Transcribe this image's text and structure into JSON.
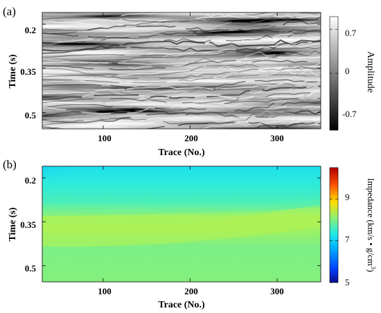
{
  "panels": [
    {
      "panel_label": "(a)",
      "colorbar_label": "Amplitude",
      "colorbar_ticks": [
        "0.7",
        "0",
        "-0.7"
      ],
      "colormap": [
        "#000000",
        "#ffffff"
      ],
      "xlabel": "Trace (No.)",
      "ylabel": "Time (s)",
      "xticks": [
        "100",
        "200",
        "300"
      ],
      "yticks": [
        "0.2",
        "0.35",
        "0.5"
      ]
    },
    {
      "panel_label": "(b)",
      "colorbar_label": "Impedance (km/s • g/cm",
      "colorbar_label_sup": "3",
      "colorbar_label_close": ")",
      "colorbar_ticks": [
        "9",
        "7",
        "5"
      ],
      "colormap": [
        "#0a0a8c",
        "#0050ff",
        "#00c8ff",
        "#40e8c8",
        "#a8f060",
        "#ffe000",
        "#ff6000",
        "#c00000"
      ],
      "xlabel": "Trace (No.)",
      "ylabel": "Time (s)",
      "xticks": [
        "100",
        "200",
        "300"
      ],
      "yticks": [
        "0.2",
        "0.35",
        "0.5"
      ]
    }
  ],
  "chart_data": [
    {
      "type": "heatmap",
      "title": "",
      "panel": "(a)",
      "xlabel": "Trace (No.)",
      "ylabel": "Time (s)",
      "xlim": [
        30,
        350
      ],
      "ylim": [
        0.555,
        0.16
      ],
      "x_ticks": [
        100,
        200,
        300
      ],
      "y_ticks": [
        0.2,
        0.35,
        0.5
      ],
      "colorbar": {
        "label": "Amplitude",
        "range": [
          -0.9,
          0.9
        ],
        "ticks": [
          0.7,
          0,
          -0.7
        ],
        "colormap": "gray"
      },
      "description_values": "seismic amplitude section with laterally continuous reflectors"
    },
    {
      "type": "heatmap",
      "title": "",
      "panel": "(b)",
      "xlabel": "Trace (No.)",
      "ylabel": "Time (s)",
      "xlim": [
        30,
        350
      ],
      "ylim": [
        0.555,
        0.16
      ],
      "x_ticks": [
        100,
        200,
        300
      ],
      "y_ticks": [
        0.2,
        0.35,
        0.5
      ],
      "colorbar": {
        "label": "Impedance (km/s • g/cm3)",
        "range": [
          5,
          10.5
        ],
        "ticks": [
          9,
          7,
          5
        ],
        "colormap": "jet"
      },
      "approx_values": {
        "top_left_corner": 6.6,
        "upper_zone_0.2s": 7.0,
        "middle_0.28s": 7.3,
        "high_layer_0.35_0.42s": 7.9,
        "lower_zone_0.5s": 7.6
      }
    }
  ]
}
